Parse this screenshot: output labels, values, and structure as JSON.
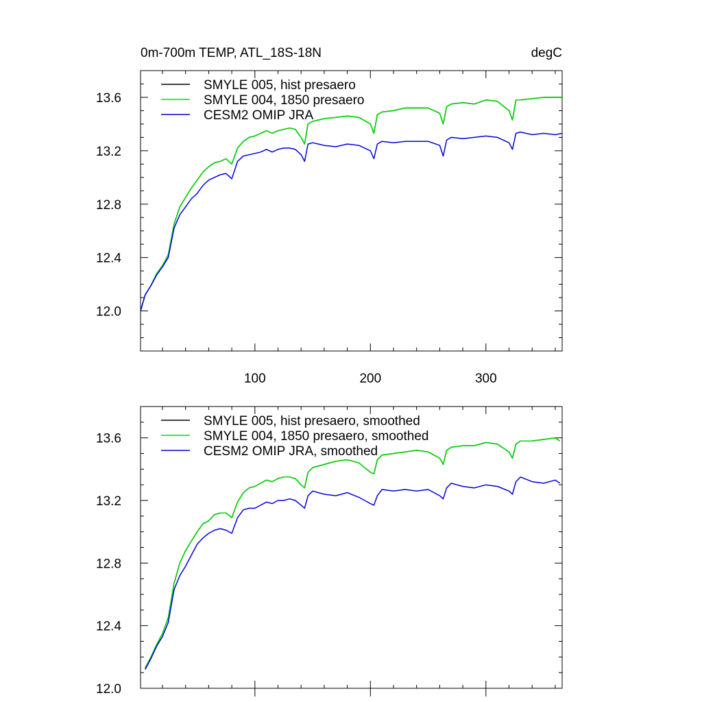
{
  "colors": {
    "smyle005": "#000000",
    "smyle004": "#00dd00",
    "cesm2": "#0000dd"
  },
  "chart_data": [
    {
      "type": "line",
      "title": "0m-700m TEMP, ATL_18S-18N",
      "units": "degC",
      "xlim": [
        1,
        366
      ],
      "ylim": [
        11.7,
        13.8
      ],
      "xticks": [
        100,
        200,
        300
      ],
      "yticks": [
        12.0,
        12.4,
        12.8,
        13.2,
        13.6
      ],
      "grid": false,
      "legend_position": "top-left",
      "series": [
        {
          "name": "SMYLE 005, hist presaero",
          "color": "#000000",
          "x": [
            1,
            5,
            10,
            15,
            20,
            25,
            30,
            35,
            40,
            45,
            50,
            55,
            60,
            65,
            70,
            75,
            80,
            85,
            90,
            95,
            100,
            105,
            110,
            115,
            120,
            125,
            130,
            135,
            140,
            143,
            146,
            150,
            160,
            170,
            180,
            190,
            200,
            203,
            206,
            210,
            220,
            230,
            240,
            250,
            260,
            263,
            266,
            270,
            280,
            290,
            300,
            310,
            320,
            323,
            326,
            330,
            340,
            350,
            360,
            366
          ],
          "y": [
            12.0,
            12.12,
            12.19,
            12.28,
            12.34,
            12.42,
            12.65,
            12.78,
            12.85,
            12.92,
            12.98,
            13.04,
            13.08,
            13.11,
            13.12,
            13.14,
            13.1,
            13.22,
            13.27,
            13.3,
            13.31,
            13.33,
            13.35,
            13.33,
            13.35,
            13.36,
            13.37,
            13.36,
            13.3,
            13.25,
            13.4,
            13.42,
            13.44,
            13.45,
            13.46,
            13.45,
            13.4,
            13.33,
            13.47,
            13.49,
            13.5,
            13.52,
            13.52,
            13.52,
            13.48,
            13.4,
            13.53,
            13.55,
            13.56,
            13.55,
            13.58,
            13.57,
            13.5,
            13.43,
            13.58,
            13.58,
            13.59,
            13.6,
            13.6,
            13.6
          ]
        },
        {
          "name": "SMYLE 004, 1850 presaero",
          "color": "#00dd00",
          "x": [
            1,
            5,
            10,
            15,
            20,
            25,
            30,
            35,
            40,
            45,
            50,
            55,
            60,
            65,
            70,
            75,
            80,
            85,
            90,
            95,
            100,
            105,
            110,
            115,
            120,
            125,
            130,
            135,
            140,
            143,
            146,
            150,
            160,
            170,
            180,
            190,
            200,
            203,
            206,
            210,
            220,
            230,
            240,
            250,
            260,
            263,
            266,
            270,
            280,
            290,
            300,
            310,
            320,
            323,
            326,
            330,
            340,
            350,
            360,
            366
          ],
          "y": [
            12.0,
            12.12,
            12.19,
            12.28,
            12.34,
            12.42,
            12.65,
            12.78,
            12.85,
            12.92,
            12.98,
            13.04,
            13.08,
            13.11,
            13.12,
            13.14,
            13.1,
            13.22,
            13.27,
            13.3,
            13.31,
            13.33,
            13.35,
            13.33,
            13.35,
            13.36,
            13.37,
            13.36,
            13.3,
            13.25,
            13.4,
            13.42,
            13.44,
            13.45,
            13.46,
            13.45,
            13.4,
            13.33,
            13.47,
            13.49,
            13.5,
            13.52,
            13.52,
            13.52,
            13.48,
            13.4,
            13.53,
            13.55,
            13.56,
            13.55,
            13.58,
            13.57,
            13.5,
            13.43,
            13.58,
            13.58,
            13.59,
            13.6,
            13.6,
            13.6
          ]
        },
        {
          "name": "CESM2 OMIP JRA",
          "color": "#0000dd",
          "x": [
            1,
            5,
            10,
            15,
            20,
            25,
            30,
            35,
            40,
            45,
            50,
            55,
            60,
            65,
            70,
            75,
            80,
            85,
            90,
            95,
            100,
            105,
            110,
            115,
            120,
            125,
            130,
            135,
            140,
            143,
            146,
            150,
            160,
            170,
            180,
            190,
            200,
            203,
            206,
            210,
            220,
            230,
            240,
            250,
            260,
            263,
            266,
            270,
            280,
            290,
            300,
            310,
            320,
            323,
            326,
            330,
            340,
            350,
            360,
            366
          ],
          "y": [
            12.0,
            12.12,
            12.19,
            12.27,
            12.33,
            12.4,
            12.62,
            12.72,
            12.78,
            12.84,
            12.88,
            12.94,
            12.98,
            13.0,
            13.02,
            13.03,
            12.99,
            13.12,
            13.16,
            13.17,
            13.18,
            13.19,
            13.21,
            13.19,
            13.21,
            13.22,
            13.22,
            13.21,
            13.17,
            13.12,
            13.25,
            13.26,
            13.24,
            13.23,
            13.25,
            13.24,
            13.2,
            13.14,
            13.25,
            13.27,
            13.26,
            13.27,
            13.27,
            13.27,
            13.24,
            13.16,
            13.28,
            13.3,
            13.29,
            13.3,
            13.31,
            13.3,
            13.26,
            13.21,
            13.33,
            13.34,
            13.32,
            13.33,
            13.32,
            13.33
          ]
        }
      ]
    },
    {
      "type": "line",
      "title": "",
      "units": "",
      "xlim": [
        1,
        366
      ],
      "ylim": [
        12.0,
        13.8
      ],
      "xticks": [
        100,
        200,
        300
      ],
      "yticks": [
        12.0,
        12.4,
        12.8,
        13.2,
        13.6
      ],
      "grid": false,
      "legend_position": "top-left",
      "series": [
        {
          "name": "SMYLE 005, hist presaero, smoothed",
          "color": "#000000",
          "x": [
            5,
            10,
            15,
            20,
            25,
            30,
            35,
            40,
            45,
            50,
            55,
            60,
            65,
            70,
            75,
            80,
            85,
            90,
            95,
            100,
            105,
            110,
            115,
            120,
            125,
            130,
            135,
            140,
            143,
            146,
            150,
            160,
            170,
            180,
            190,
            200,
            203,
            206,
            210,
            220,
            230,
            240,
            250,
            260,
            263,
            266,
            270,
            280,
            290,
            300,
            310,
            320,
            323,
            326,
            330,
            340,
            350,
            360,
            364
          ],
          "y": [
            12.13,
            12.2,
            12.28,
            12.35,
            12.45,
            12.67,
            12.8,
            12.88,
            12.94,
            13.0,
            13.05,
            13.07,
            13.11,
            13.12,
            13.12,
            13.09,
            13.19,
            13.25,
            13.28,
            13.29,
            13.31,
            13.33,
            13.32,
            13.34,
            13.35,
            13.35,
            13.34,
            13.3,
            13.28,
            13.38,
            13.41,
            13.43,
            13.45,
            13.46,
            13.44,
            13.38,
            13.37,
            13.46,
            13.49,
            13.5,
            13.51,
            13.52,
            13.51,
            13.47,
            13.43,
            13.52,
            13.54,
            13.55,
            13.55,
            13.57,
            13.56,
            13.51,
            13.47,
            13.56,
            13.58,
            13.58,
            13.59,
            13.6,
            13.58
          ]
        },
        {
          "name": "SMYLE 004, 1850 presaero, smoothed",
          "color": "#00dd00",
          "x": [
            5,
            10,
            15,
            20,
            25,
            30,
            35,
            40,
            45,
            50,
            55,
            60,
            65,
            70,
            75,
            80,
            85,
            90,
            95,
            100,
            105,
            110,
            115,
            120,
            125,
            130,
            135,
            140,
            143,
            146,
            150,
            160,
            170,
            180,
            190,
            200,
            203,
            206,
            210,
            220,
            230,
            240,
            250,
            260,
            263,
            266,
            270,
            280,
            290,
            300,
            310,
            320,
            323,
            326,
            330,
            340,
            350,
            360,
            364
          ],
          "y": [
            12.13,
            12.2,
            12.28,
            12.35,
            12.45,
            12.67,
            12.8,
            12.88,
            12.94,
            13.0,
            13.05,
            13.07,
            13.11,
            13.12,
            13.12,
            13.09,
            13.19,
            13.25,
            13.28,
            13.29,
            13.31,
            13.33,
            13.32,
            13.34,
            13.35,
            13.35,
            13.34,
            13.3,
            13.28,
            13.38,
            13.41,
            13.43,
            13.45,
            13.46,
            13.44,
            13.38,
            13.37,
            13.46,
            13.49,
            13.5,
            13.51,
            13.52,
            13.51,
            13.47,
            13.43,
            13.52,
            13.54,
            13.55,
            13.55,
            13.57,
            13.56,
            13.51,
            13.47,
            13.56,
            13.58,
            13.58,
            13.59,
            13.6,
            13.58
          ]
        },
        {
          "name": "CESM2 OMIP JRA, smoothed",
          "color": "#0000dd",
          "x": [
            5,
            10,
            15,
            20,
            25,
            30,
            35,
            40,
            45,
            50,
            55,
            60,
            65,
            70,
            75,
            80,
            85,
            90,
            95,
            100,
            105,
            110,
            115,
            120,
            125,
            130,
            135,
            140,
            143,
            146,
            150,
            160,
            170,
            180,
            190,
            200,
            203,
            206,
            210,
            220,
            230,
            240,
            250,
            260,
            263,
            266,
            270,
            280,
            290,
            300,
            310,
            320,
            323,
            326,
            330,
            340,
            350,
            360,
            364
          ],
          "y": [
            12.12,
            12.19,
            12.27,
            12.33,
            12.42,
            12.63,
            12.72,
            12.78,
            12.85,
            12.92,
            12.96,
            12.99,
            13.01,
            13.02,
            13.01,
            12.99,
            13.09,
            13.14,
            13.15,
            13.15,
            13.17,
            13.19,
            13.18,
            13.2,
            13.2,
            13.21,
            13.2,
            13.17,
            13.15,
            13.23,
            13.26,
            13.24,
            13.23,
            13.25,
            13.22,
            13.18,
            13.17,
            13.23,
            13.27,
            13.26,
            13.27,
            13.26,
            13.27,
            13.23,
            13.21,
            13.28,
            13.31,
            13.29,
            13.28,
            13.3,
            13.29,
            13.26,
            13.24,
            13.32,
            13.35,
            13.32,
            13.31,
            13.33,
            13.31
          ]
        }
      ]
    }
  ]
}
